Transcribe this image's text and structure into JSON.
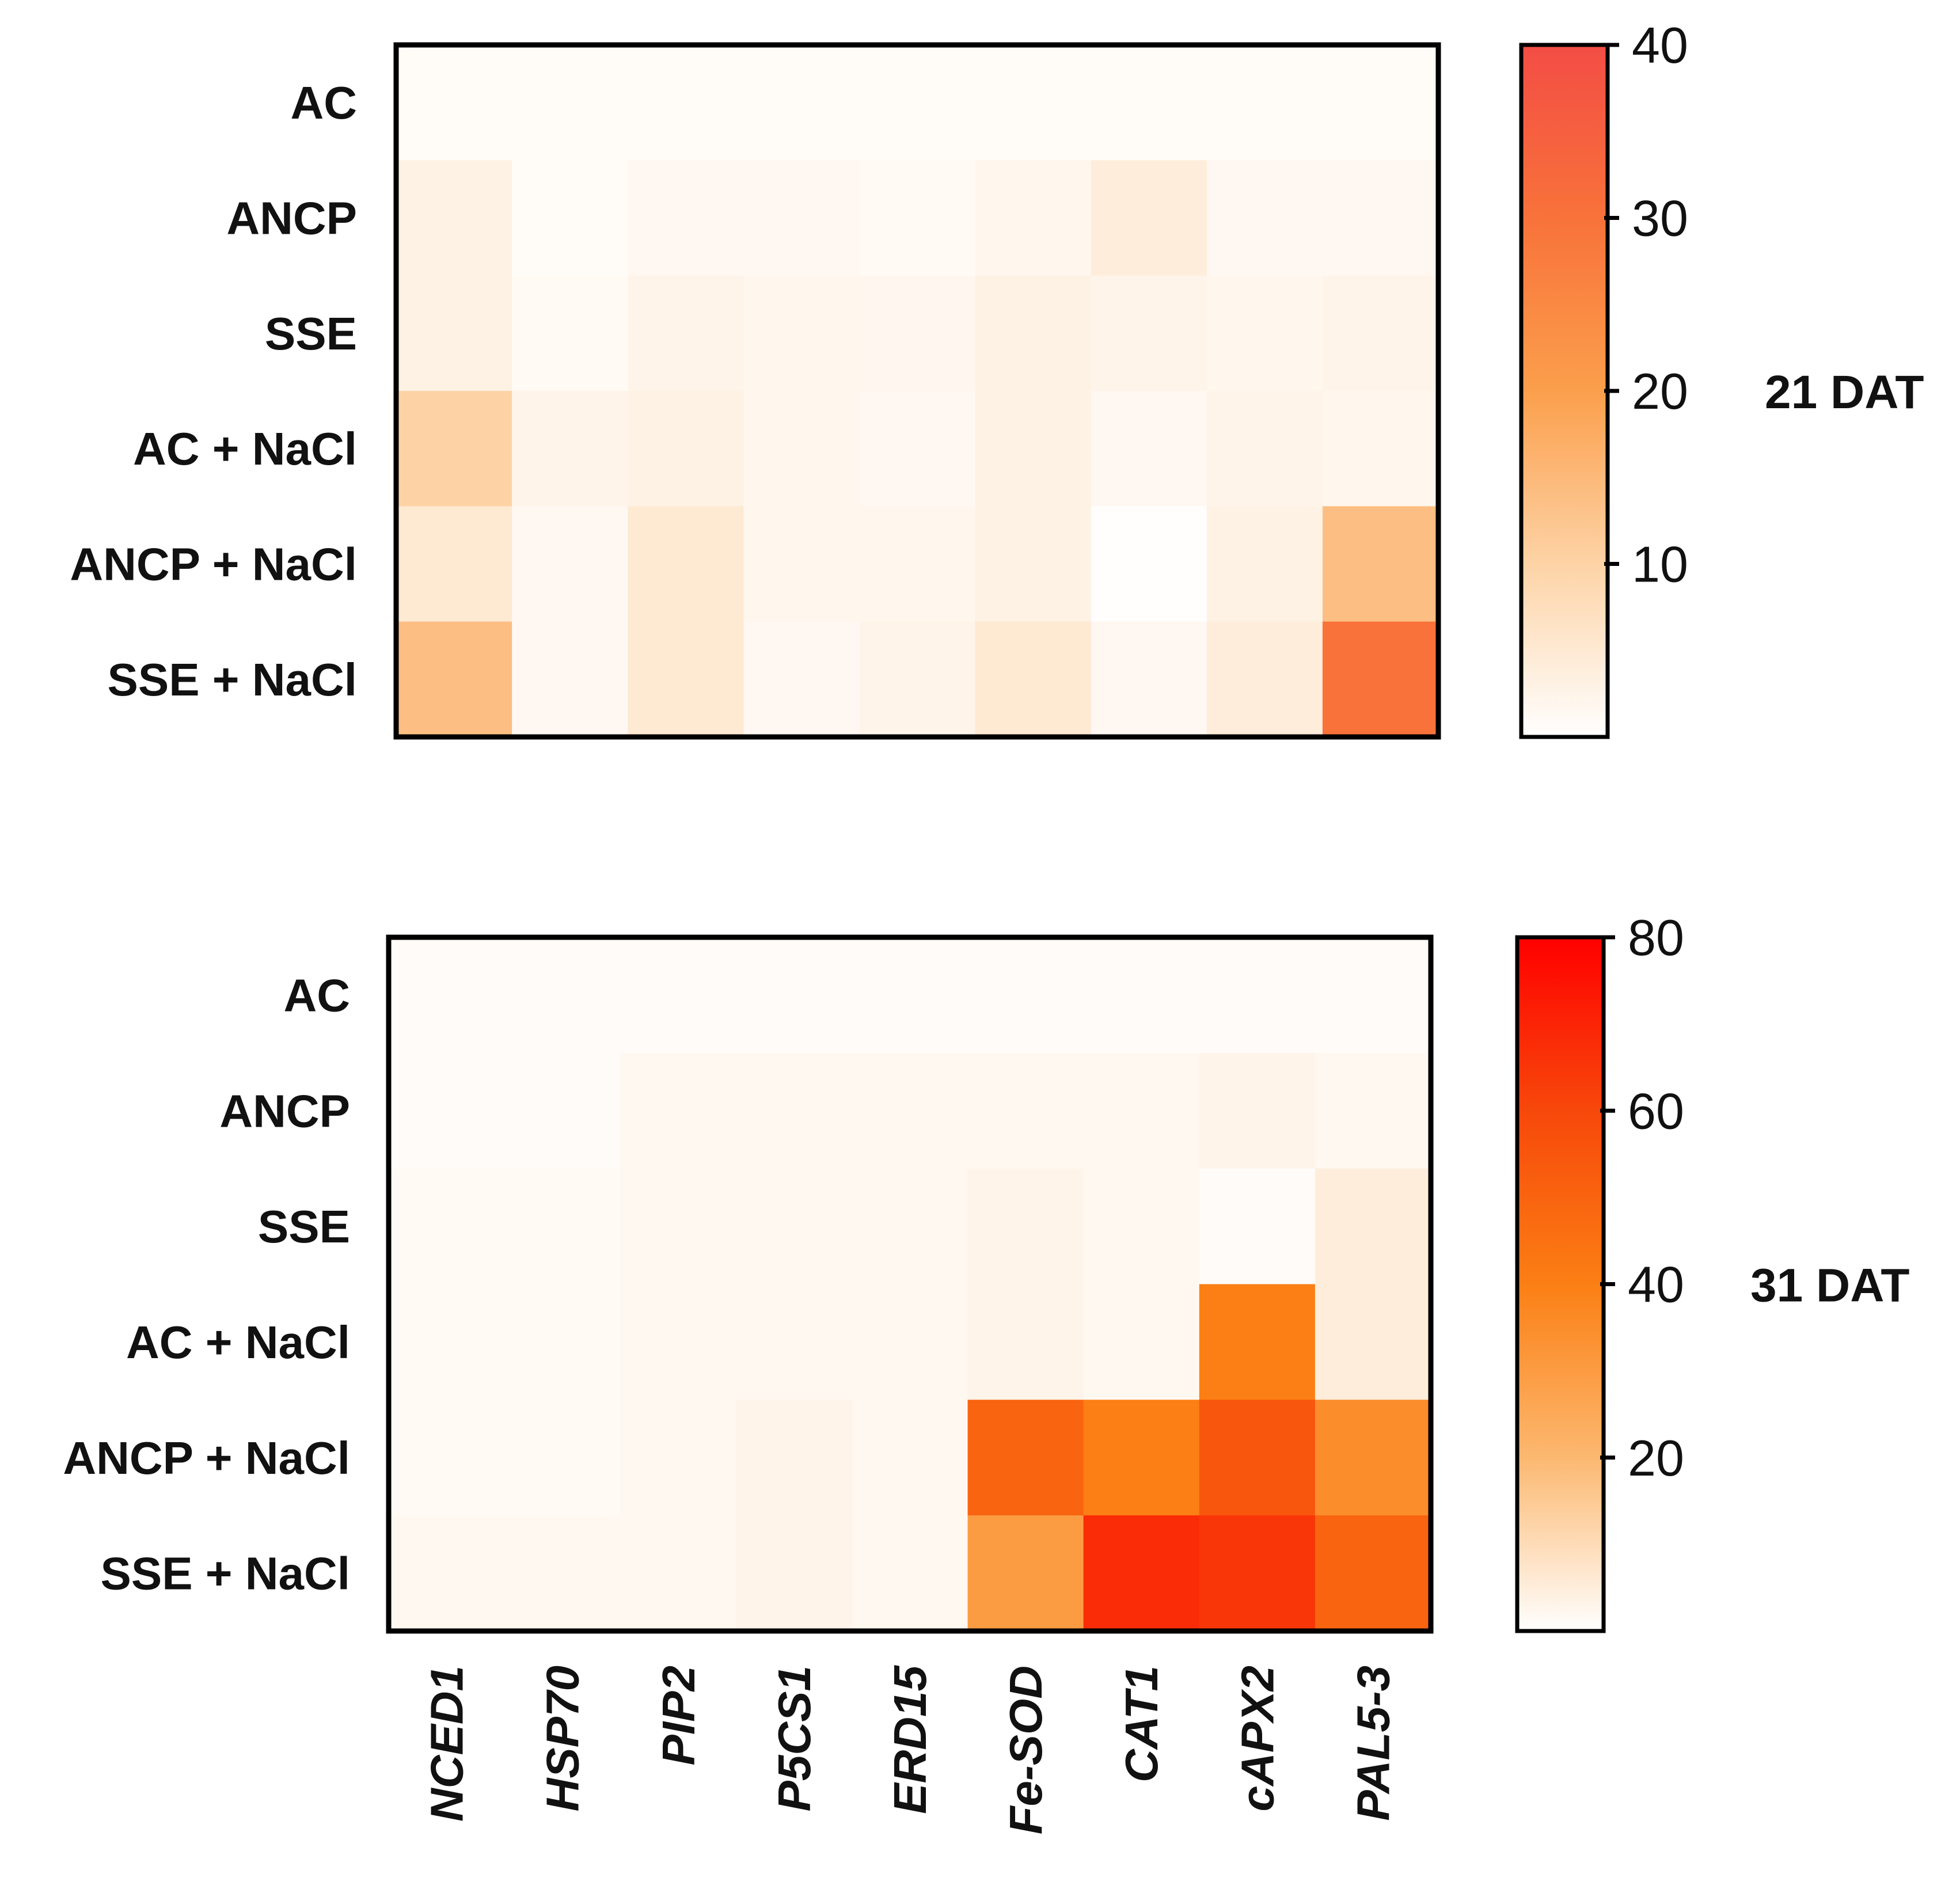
{
  "chart_data": [
    {
      "type": "heatmap",
      "title": "21 DAT",
      "rows": [
        "AC",
        "ANCP",
        "SSE",
        "AC + NaCl",
        "ANCP + NaCl",
        "SSE + NaCl"
      ],
      "columns": [
        "NCED1",
        "HSP70",
        "PIP2",
        "P5CS1",
        "ERD15",
        "Fe-SOD",
        "CAT1",
        "cAPX2",
        "PAL5-3"
      ],
      "values": [
        [
          1,
          1,
          1,
          1,
          1,
          1,
          1,
          1,
          1
        ],
        [
          3,
          1,
          1.5,
          1.5,
          1.2,
          2,
          4,
          1.5,
          1.5
        ],
        [
          3,
          1.2,
          2.5,
          2,
          1.8,
          3,
          2.5,
          2,
          2.5
        ],
        [
          10,
          2.5,
          3,
          2,
          1.5,
          3,
          1.5,
          2.5,
          2
        ],
        [
          5,
          1.5,
          5,
          2,
          2,
          3,
          0.2,
          3,
          14
        ],
        [
          14,
          1.5,
          5,
          1.5,
          2.5,
          5,
          1.5,
          4,
          30
        ]
      ],
      "colorbar": {
        "min": 0,
        "max": 40,
        "ticks": [
          10,
          20,
          30,
          40
        ]
      }
    },
    {
      "type": "heatmap",
      "title": "31 DAT",
      "rows": [
        "AC",
        "ANCP",
        "SSE",
        "AC + NaCl",
        "ANCP + NaCl",
        "SSE + NaCl"
      ],
      "columns": [
        "NCED1",
        "HSP70",
        "PIP2",
        "P5CS1",
        "ERD15",
        "Fe-SOD",
        "CAT1",
        "cAPX2",
        "PAL5-3"
      ],
      "values": [
        [
          1,
          1,
          1,
          1,
          1,
          1,
          1,
          1,
          1
        ],
        [
          1,
          1,
          2,
          2,
          2,
          2,
          2,
          3,
          2
        ],
        [
          1.5,
          1.5,
          2,
          2,
          2,
          3,
          2,
          1,
          5
        ],
        [
          1.5,
          1.5,
          2,
          2,
          2,
          3,
          2,
          40,
          5
        ],
        [
          1.5,
          1.5,
          2,
          3,
          2,
          50,
          40,
          55,
          35
        ],
        [
          2,
          2,
          2,
          3,
          2,
          30,
          68,
          65,
          50
        ]
      ],
      "colorbar": {
        "min": 0,
        "max": 80,
        "ticks": [
          20,
          40,
          60,
          80
        ]
      }
    }
  ]
}
